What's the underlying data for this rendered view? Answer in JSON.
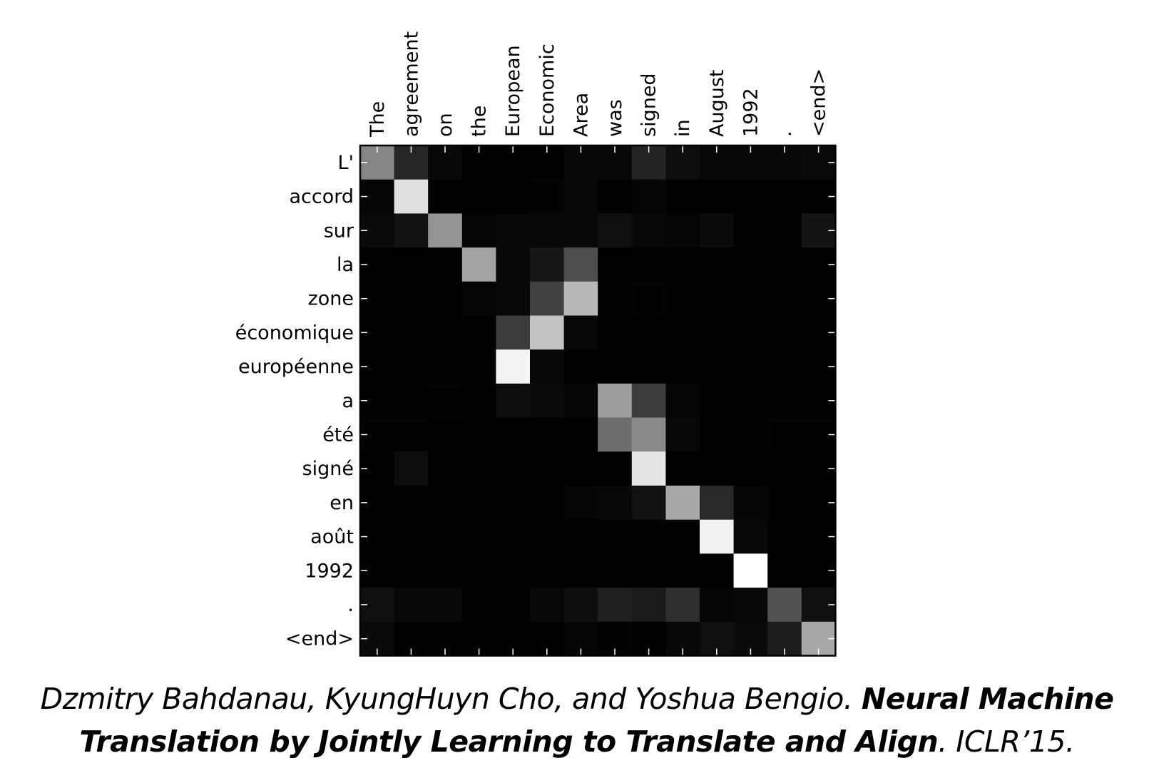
{
  "chart_data": {
    "type": "heatmap",
    "x_labels": [
      "The",
      "agreement",
      "on",
      "the",
      "European",
      "Economic",
      "Area",
      "was",
      "signed",
      "in",
      "August",
      "1992",
      ".",
      "<end>"
    ],
    "y_labels": [
      "L'",
      "accord",
      "sur",
      "la",
      "zone",
      "économique",
      "européenne",
      "a",
      "été",
      "signé",
      "en",
      "août",
      "1992",
      ".",
      "<end>"
    ],
    "colormap": "gray",
    "value_range": [
      0,
      1
    ],
    "values": [
      [
        0.52,
        0.15,
        0.03,
        0.0,
        0.0,
        0.0,
        0.03,
        0.03,
        0.14,
        0.05,
        0.03,
        0.03,
        0.03,
        0.04
      ],
      [
        0.02,
        0.88,
        0.0,
        0.0,
        0.0,
        0.01,
        0.03,
        0.0,
        0.02,
        0.0,
        0.0,
        0.0,
        0.0,
        0.0
      ],
      [
        0.04,
        0.07,
        0.58,
        0.02,
        0.03,
        0.03,
        0.03,
        0.06,
        0.03,
        0.02,
        0.04,
        0.0,
        0.0,
        0.08
      ],
      [
        0.0,
        0.0,
        0.0,
        0.64,
        0.03,
        0.09,
        0.3,
        0.0,
        0.0,
        0.0,
        0.0,
        0.0,
        0.0,
        0.0
      ],
      [
        0.0,
        0.0,
        0.0,
        0.02,
        0.03,
        0.25,
        0.72,
        0.0,
        0.01,
        0.0,
        0.0,
        0.0,
        0.0,
        0.0
      ],
      [
        0.0,
        0.0,
        0.0,
        0.0,
        0.23,
        0.76,
        0.03,
        0.0,
        0.0,
        0.0,
        0.0,
        0.0,
        0.0,
        0.0
      ],
      [
        0.0,
        0.0,
        0.0,
        0.0,
        0.96,
        0.03,
        0.0,
        0.0,
        0.0,
        0.0,
        0.0,
        0.0,
        0.0,
        0.0
      ],
      [
        0.0,
        0.0,
        0.01,
        0.0,
        0.05,
        0.04,
        0.02,
        0.62,
        0.24,
        0.02,
        0.0,
        0.0,
        0.0,
        0.0
      ],
      [
        0.01,
        0.01,
        0.0,
        0.0,
        0.0,
        0.0,
        0.0,
        0.43,
        0.54,
        0.03,
        0.0,
        0.0,
        0.01,
        0.01
      ],
      [
        0.0,
        0.05,
        0.0,
        0.0,
        0.0,
        0.0,
        0.0,
        0.0,
        0.9,
        0.0,
        0.0,
        0.0,
        0.0,
        0.0
      ],
      [
        0.0,
        0.0,
        0.0,
        0.0,
        0.0,
        0.0,
        0.02,
        0.03,
        0.07,
        0.66,
        0.16,
        0.02,
        0.01,
        0.01
      ],
      [
        0.0,
        0.0,
        0.0,
        0.0,
        0.0,
        0.0,
        0.0,
        0.0,
        0.0,
        0.0,
        0.95,
        0.03,
        0.0,
        0.0
      ],
      [
        0.0,
        0.0,
        0.0,
        0.0,
        0.0,
        0.0,
        0.0,
        0.0,
        0.0,
        0.0,
        0.0,
        1.0,
        0.0,
        0.0
      ],
      [
        0.06,
        0.03,
        0.03,
        0.0,
        0.0,
        0.03,
        0.05,
        0.12,
        0.1,
        0.18,
        0.02,
        0.03,
        0.32,
        0.06
      ],
      [
        0.04,
        0.0,
        0.0,
        0.0,
        0.0,
        0.0,
        0.02,
        0.01,
        0.0,
        0.03,
        0.06,
        0.04,
        0.11,
        0.66
      ]
    ]
  },
  "caption": {
    "authors": "Dzmitry Bahdanau, KyungHuyn Cho, and Yoshua Bengio. ",
    "title": "Neural Machine Translation by Jointly Learning to Translate and Align",
    "venue": ". ICLR’15."
  }
}
